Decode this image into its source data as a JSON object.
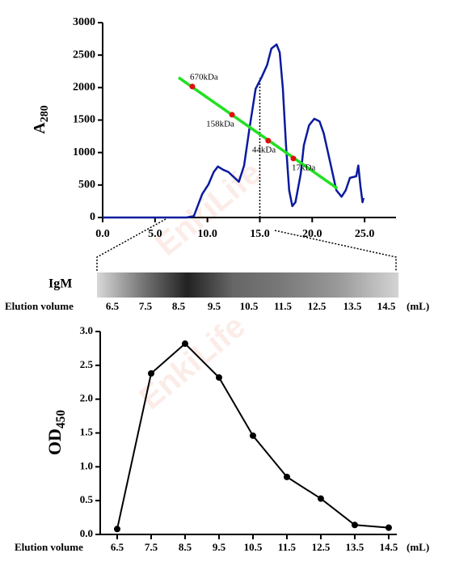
{
  "chart_data": [
    {
      "type": "line",
      "ylabel": "A",
      "ylabel_sub": "280",
      "xlim": [
        0,
        28
      ],
      "ylim": [
        0,
        3000
      ],
      "xticks": [
        {
          "value": 0,
          "label": "0.0"
        },
        {
          "value": 5,
          "label": "5.0"
        },
        {
          "value": 10,
          "label": "10.0"
        },
        {
          "value": 15,
          "label": "15.0"
        },
        {
          "value": 20,
          "label": "20.0"
        },
        {
          "value": 25,
          "label": "25.0"
        }
      ],
      "yticks": [
        0,
        500,
        1000,
        1500,
        2000,
        2500,
        3000
      ],
      "curve": {
        "color": "#0a1a9e",
        "x": [
          0,
          8,
          8.7,
          9.5,
          10.1,
          10.6,
          11,
          11.5,
          12,
          12.6,
          13,
          13.5,
          14,
          14.6,
          15.2,
          15.7,
          16.1,
          16.6,
          16.9,
          17.2,
          17.5,
          17.8,
          18.1,
          18.4,
          18.9,
          19.2,
          19.7,
          20.2,
          20.7,
          21.1,
          21.7,
          22.3,
          22.8,
          23.2,
          23.6,
          24.2,
          24.4,
          24.6,
          24.8,
          24.9
        ],
        "values": [
          0,
          0,
          20,
          360,
          510,
          700,
          785,
          735,
          700,
          610,
          550,
          800,
          1360,
          1980,
          2170,
          2350,
          2600,
          2665,
          2540,
          1980,
          1110,
          420,
          175,
          235,
          670,
          1110,
          1420,
          1520,
          1480,
          1295,
          860,
          420,
          320,
          420,
          610,
          635,
          800,
          485,
          235,
          300
        ]
      },
      "standard": {
        "color": "#22e022",
        "x": [
          7.25,
          22.4
        ],
        "values": [
          2154,
          448
        ]
      },
      "markers": {
        "color": "#e01010",
        "x": [
          8.56,
          12.35,
          15.8,
          18.2
        ],
        "values": [
          2017,
          1582,
          1183,
          909
        ],
        "labels": [
          "670kDa",
          "158kDa",
          "44kDa",
          "17kDa"
        ]
      },
      "vline": {
        "x": 15,
        "top": 2150
      }
    },
    {
      "type": "line",
      "ylabel": "OD",
      "ylabel_sub": "450",
      "xlabel": "Elution volume",
      "xunit": "(mL)",
      "xlim": [
        6,
        14.74
      ],
      "ylim": [
        0,
        3.0
      ],
      "xticks": [
        6.5,
        7.5,
        8.5,
        9.5,
        10.5,
        11.5,
        12.5,
        13.5,
        14.5
      ],
      "yticks": [
        {
          "value": 0,
          "label": "0.0"
        },
        {
          "value": 0.5,
          "label": "0.5"
        },
        {
          "value": 1,
          "label": "1.0"
        },
        {
          "value": 1.5,
          "label": "1.5"
        },
        {
          "value": 2,
          "label": "2.0"
        },
        {
          "value": 2.5,
          "label": "2.5"
        },
        {
          "value": 3,
          "label": "3.0"
        }
      ],
      "curve": {
        "color": "#000000",
        "x": [
          6.5,
          7.5,
          8.5,
          9.5,
          10.5,
          11.5,
          12.5,
          13.5,
          14.5
        ],
        "values": [
          0.08,
          2.38,
          2.82,
          2.32,
          1.46,
          0.85,
          0.53,
          0.14,
          0.1
        ],
        "points": true
      }
    }
  ],
  "gel": {
    "label": "IgM",
    "axis_label": "Elution volume",
    "volumes": [
      6.5,
      7.5,
      8.5,
      9.5,
      10.5,
      11.5,
      12.5,
      13.5,
      14.5
    ],
    "unit": "(mL)"
  },
  "watermark": "EnkiLife"
}
